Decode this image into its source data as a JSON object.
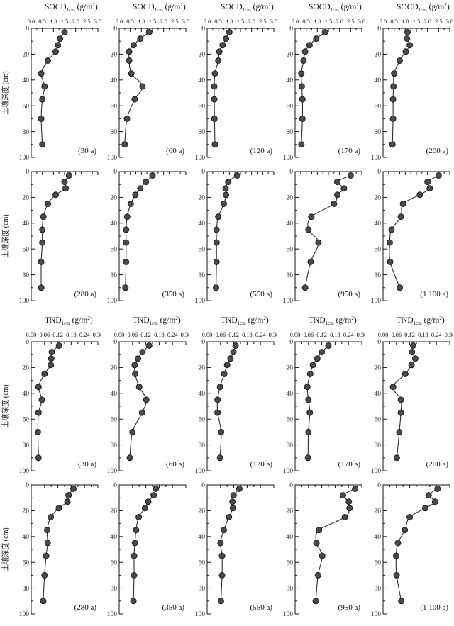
{
  "figure": {
    "name": "soil-depth-profiles",
    "ylabel": "土壤深度 (cm)",
    "background": "#ffffff",
    "line_color": "#2e2e2e",
    "marker_fill": "#4a4a4a",
    "marker_stroke": "#1c1c1c",
    "text_color": "#111111"
  },
  "chart_data": [
    {
      "type": "line",
      "title": {
        "base": "SOCD",
        "sub": "1cm",
        "unit_pre": "(g/m",
        "unit_sup": "2",
        "unit_post": ")"
      },
      "show_header": true,
      "xlim": [
        0,
        3.0
      ],
      "xticks": [
        0,
        0.5,
        1.0,
        1.5,
        2.0,
        2.5,
        3.0
      ],
      "xtick_labels": [
        "0.0",
        "0.5",
        "1.0",
        "1.5",
        "2.0",
        "2.5",
        "3.0"
      ],
      "ylabel": "土壤深度 (cm)",
      "ylim": [
        0,
        100
      ],
      "yticks": [
        0,
        20,
        40,
        60,
        80,
        100
      ],
      "depths_cm": [
        3,
        8,
        13,
        18,
        25,
        35,
        45,
        55,
        70,
        90
      ],
      "panels": [
        {
          "label": "(30 a)",
          "values": [
            1.5,
            1.3,
            1.2,
            1.1,
            0.75,
            0.45,
            0.6,
            0.5,
            0.45,
            0.5
          ]
        },
        {
          "label": "(60 a)",
          "values": [
            1.35,
            0.95,
            0.65,
            0.45,
            0.45,
            0.55,
            1.05,
            0.7,
            0.35,
            0.25
          ]
        },
        {
          "label": "(120 a)",
          "values": [
            1.0,
            0.85,
            0.7,
            0.55,
            0.5,
            0.35,
            0.32,
            0.32,
            0.33,
            0.35
          ]
        },
        {
          "label": "(170 a)",
          "values": [
            1.35,
            0.95,
            0.65,
            0.45,
            0.38,
            0.28,
            0.3,
            0.33,
            0.33,
            0.28
          ]
        },
        {
          "label": "(200 a)",
          "values": [
            1.1,
            1.08,
            1.2,
            1.02,
            0.75,
            0.5,
            0.47,
            0.45,
            0.45,
            0.42
          ]
        }
      ]
    },
    {
      "type": "line",
      "title": {
        "base": "SOCD",
        "sub": "1cm",
        "unit_pre": "(g/m",
        "unit_sup": "2",
        "unit_post": ")"
      },
      "show_header": false,
      "xlim": [
        0,
        3.0
      ],
      "xticks": [
        0,
        0.5,
        1.0,
        1.5,
        2.0,
        2.5,
        3.0
      ],
      "xtick_labels": [],
      "ylabel": "土壤深度 (cm)",
      "ylim": [
        0,
        100
      ],
      "yticks": [
        0,
        20,
        40,
        60,
        80,
        100
      ],
      "depths_cm": [
        3,
        8,
        13,
        18,
        25,
        35,
        45,
        55,
        70,
        90
      ],
      "panels": [
        {
          "label": "(280 a)",
          "values": [
            1.7,
            1.5,
            1.55,
            1.1,
            0.75,
            0.55,
            0.5,
            0.5,
            0.45,
            0.45
          ]
        },
        {
          "label": "(350 a)",
          "values": [
            1.5,
            1.2,
            0.95,
            0.73,
            0.52,
            0.36,
            0.31,
            0.31,
            0.31,
            0.28
          ]
        },
        {
          "label": "(550 a)",
          "values": [
            1.35,
            0.95,
            0.83,
            0.85,
            0.75,
            0.5,
            0.42,
            0.42,
            0.42,
            0.4
          ]
        },
        {
          "label": "(950 a)",
          "values": [
            2.5,
            1.9,
            2.2,
            1.9,
            1.75,
            0.73,
            0.6,
            1.05,
            0.7,
            0.45
          ]
        },
        {
          "label": "(1 100 a)",
          "values": [
            2.5,
            2.0,
            2.1,
            1.65,
            0.9,
            0.8,
            0.38,
            0.3,
            0.32,
            0.75
          ]
        }
      ]
    },
    {
      "type": "line",
      "title": {
        "base": "TND",
        "sub": "1cm",
        "unit_pre": "(g/m",
        "unit_sup": "2",
        "unit_post": ")"
      },
      "show_header": true,
      "xlim": [
        0,
        0.3
      ],
      "xticks": [
        0,
        0.06,
        0.12,
        0.18,
        0.24,
        0.3
      ],
      "xtick_labels": [
        "0.00",
        "0.06",
        "0.12",
        "0.18",
        "0.24",
        "0.30"
      ],
      "ylabel": "土壤深度 (cm)",
      "ylim": [
        0,
        100
      ],
      "yticks": [
        0,
        20,
        40,
        60,
        80,
        100
      ],
      "depths_cm": [
        3,
        8,
        13,
        18,
        25,
        35,
        45,
        55,
        70,
        90
      ],
      "panels": [
        {
          "label": "(30 a)",
          "values": [
            0.125,
            0.093,
            0.09,
            0.088,
            0.06,
            0.033,
            0.048,
            0.033,
            0.03,
            0.033
          ]
        },
        {
          "label": "(60 a)",
          "values": [
            0.135,
            0.105,
            0.085,
            0.07,
            0.072,
            0.09,
            0.122,
            0.103,
            0.06,
            0.048
          ]
        },
        {
          "label": "(120 a)",
          "values": [
            0.128,
            0.118,
            0.105,
            0.09,
            0.077,
            0.058,
            0.047,
            0.047,
            0.063,
            0.058
          ]
        },
        {
          "label": "(170 a)",
          "values": [
            0.15,
            0.12,
            0.1,
            0.08,
            0.068,
            0.055,
            0.06,
            0.066,
            0.06,
            0.058
          ]
        },
        {
          "label": "(200 a)",
          "values": [
            0.135,
            0.13,
            0.145,
            0.128,
            0.1,
            0.045,
            0.08,
            0.08,
            0.073,
            0.062
          ]
        }
      ]
    },
    {
      "type": "line",
      "title": {
        "base": "TND",
        "sub": "1cm",
        "unit_pre": "(g/m",
        "unit_sup": "2",
        "unit_post": ")"
      },
      "show_header": false,
      "xlim": [
        0,
        0.3
      ],
      "xticks": [
        0,
        0.06,
        0.12,
        0.18,
        0.24,
        0.3
      ],
      "xtick_labels": [],
      "ylabel": "土壤深度 (cm)",
      "ylim": [
        0,
        100
      ],
      "yticks": [
        0,
        20,
        40,
        60,
        80,
        100
      ],
      "depths_cm": [
        3,
        8,
        13,
        18,
        25,
        35,
        45,
        55,
        70,
        90
      ],
      "panels": [
        {
          "label": "(280 a)",
          "values": [
            0.19,
            0.168,
            0.163,
            0.124,
            0.088,
            0.072,
            0.074,
            0.067,
            0.06,
            0.054
          ]
        },
        {
          "label": "(350 a)",
          "values": [
            0.165,
            0.155,
            0.131,
            0.116,
            0.088,
            0.076,
            0.071,
            0.067,
            0.067,
            0.064
          ]
        },
        {
          "label": "(550 a)",
          "values": [
            0.145,
            0.119,
            0.114,
            0.116,
            0.098,
            0.075,
            0.06,
            0.067,
            0.067,
            0.062
          ]
        },
        {
          "label": "(950 a)",
          "values": [
            0.27,
            0.215,
            0.242,
            0.245,
            0.224,
            0.108,
            0.096,
            0.122,
            0.103,
            0.093
          ]
        },
        {
          "label": "(1 100 a)",
          "values": [
            0.245,
            0.205,
            0.234,
            0.19,
            0.12,
            0.098,
            0.067,
            0.059,
            0.061,
            0.082
          ]
        }
      ]
    }
  ]
}
